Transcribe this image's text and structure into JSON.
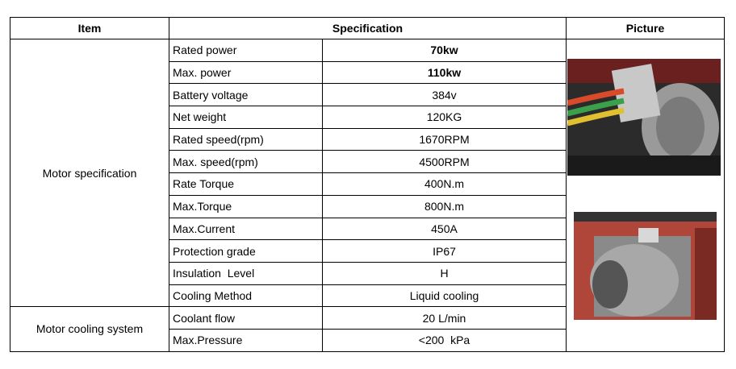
{
  "header": {
    "item": "Item",
    "specification": "Specification",
    "picture": "Picture"
  },
  "groups": [
    {
      "item": "Motor specification",
      "rows": [
        [
          "Rated power",
          "70kw"
        ],
        [
          "Max. power",
          "110kw"
        ],
        [
          "Battery voltage",
          "384v"
        ],
        [
          "Net weight",
          "120KG"
        ],
        [
          "Rated speed(rpm)",
          "1670RPM"
        ],
        [
          "Max. speed(rpm)",
          "4500RPM"
        ],
        [
          "Rate Torque",
          "400N.m"
        ],
        [
          "Max.Torque",
          "800N.m"
        ],
        [
          "Max.Current",
          "450A"
        ],
        [
          "Protection grade",
          "IP67"
        ],
        [
          "Insulation  Level",
          "H"
        ],
        [
          "Cooling Method",
          "Liquid cooling"
        ]
      ]
    },
    {
      "item": "Motor cooling system",
      "rows": [
        [
          "Coolant flow",
          "20 L/min"
        ],
        [
          "Max.Pressure",
          "<200  kPa"
        ]
      ]
    }
  ]
}
